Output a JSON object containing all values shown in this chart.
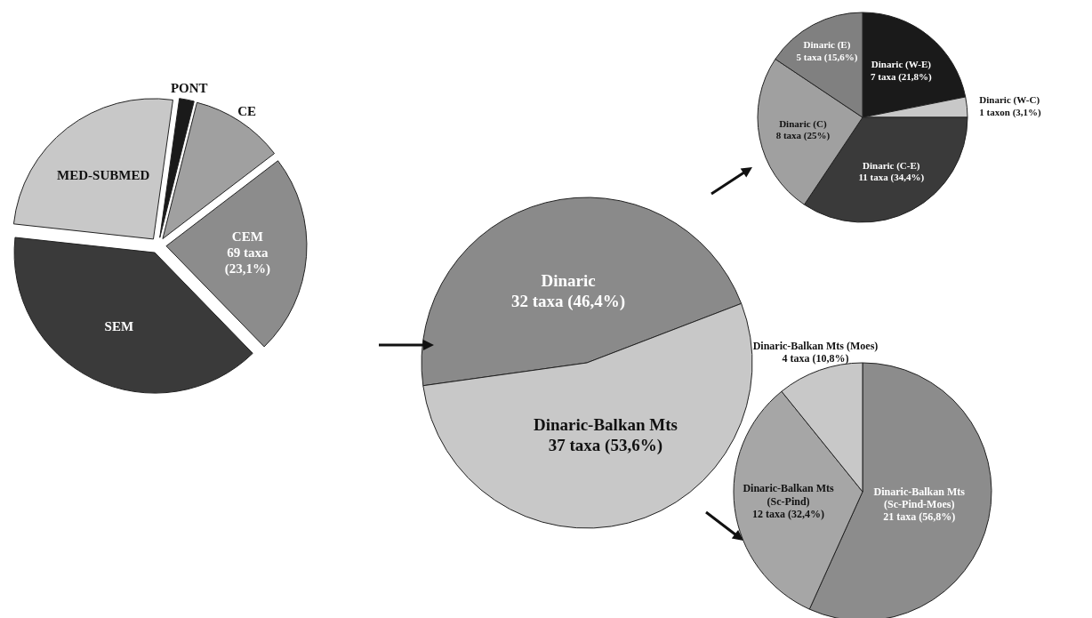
{
  "chart_data": [
    {
      "type": "pie",
      "categories": [
        "PONT",
        "CE",
        "CEM",
        "SEM",
        "MED-SUBMED"
      ],
      "values": [
        1.7,
        10.7,
        23.1,
        39,
        25.5
      ],
      "colors": [
        "#1a1a1a",
        "#a0a0a0",
        "#8c8c8c",
        "#3a3a3a",
        "#c8c8c8"
      ],
      "value_labels": [
        null,
        null,
        "69 taxa (23,1%)",
        null,
        null
      ]
    },
    {
      "type": "pie",
      "categories": [
        "Dinaric",
        "Dinaric-Balkan Mts"
      ],
      "values": [
        32,
        37
      ],
      "colors": [
        "#8a8a8a",
        "#c8c8c8"
      ],
      "value_labels": [
        "32 taxa (46,4%)",
        "37 taxa (53,6%)"
      ]
    },
    {
      "type": "pie",
      "categories": [
        "Dinaric (W-E)",
        "Dinaric (W-C)",
        "Dinaric (C-E)",
        "Dinaric (C)",
        "Dinaric (E)"
      ],
      "values": [
        7,
        1,
        11,
        8,
        5
      ],
      "colors": [
        "#1a1a1a",
        "#c8c8c8",
        "#3a3a3a",
        "#a0a0a0",
        "#808080"
      ],
      "value_labels": [
        "7 taxa (21,8%)",
        "1 taxon (3,1%)",
        "11 taxa (34,4%)",
        "8 taxa (25%)",
        "5 taxa (15,6%)"
      ]
    },
    {
      "type": "pie",
      "categories": [
        "Dinaric-Balkan Mts (Sc-Pind-Moes)",
        "Dinaric-Balkan Mts (Sc-Pind)",
        "Dinaric-Balkan Mts (Moes)"
      ],
      "values": [
        21,
        12,
        4
      ],
      "colors": [
        "#8c8c8c",
        "#a6a6a6",
        "#c8c8c8"
      ],
      "value_labels": [
        "21 taxa (56,8%)",
        "12 taxa (32,4%)",
        "4 taxa (10,8%)"
      ]
    }
  ]
}
